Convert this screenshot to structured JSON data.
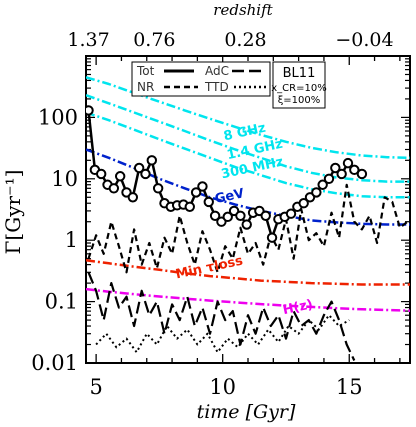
{
  "chart_data": {
    "type": "line",
    "title": "",
    "xlabel": "time [Gyr]",
    "ylabel": "Γ[Gyr⁻¹]",
    "top_axis_label": "redshift",
    "xlim": [
      4.6,
      17.4
    ],
    "ylim": [
      0.01,
      1000
    ],
    "yscale": "log",
    "grid": false,
    "x_ticks": [
      5,
      10,
      15
    ],
    "x_tick_labels": [
      "5",
      "10",
      "15"
    ],
    "y_ticks": [
      0.01,
      0.1,
      1,
      10,
      100
    ],
    "y_tick_labels": [
      "0.01",
      "0.1",
      "1",
      "10",
      "100"
    ],
    "top_ticks": [
      {
        "x": 4.7,
        "label": "1.37"
      },
      {
        "x": 7.3,
        "label": "0.76"
      },
      {
        "x": 10.9,
        "label": "0.28"
      },
      {
        "x": 15.6,
        "label": "−0.04"
      }
    ],
    "legend": {
      "placement": "top-center",
      "entries": [
        {
          "label": "Tot",
          "style": "solid"
        },
        {
          "label": "NR",
          "style": "dashed"
        },
        {
          "label": "AdC",
          "style": "long-dashed"
        },
        {
          "label": "TTD",
          "style": "dotted"
        }
      ]
    },
    "info_box": {
      "title": "BL11",
      "line1": "x_CR=10%",
      "line2": "ξ=100%"
    },
    "series": [
      {
        "name": "Tot",
        "color": "#000000",
        "style": "solid-markers",
        "x": [
          4.7,
          4.95,
          5.2,
          5.45,
          5.7,
          5.95,
          6.2,
          6.45,
          6.7,
          6.95,
          7.2,
          7.45,
          7.7,
          7.95,
          8.2,
          8.45,
          8.7,
          8.95,
          9.2,
          9.45,
          9.7,
          9.95,
          10.2,
          10.45,
          10.7,
          10.95,
          11.2,
          11.45,
          11.7,
          11.95,
          12.2,
          12.45,
          12.7,
          12.95,
          13.2,
          13.45,
          13.7,
          13.95,
          14.2,
          14.45,
          14.7,
          14.95,
          15.2,
          15.5
        ],
        "y": [
          130,
          14,
          12,
          8,
          7,
          11,
          6,
          5,
          15,
          12,
          20,
          7,
          4,
          3.5,
          3.7,
          3.8,
          3.5,
          6,
          7.5,
          4.2,
          2.5,
          2,
          2.4,
          3,
          2.5,
          1.8,
          2.8,
          3,
          2.5,
          1.1,
          2.2,
          2.4,
          2.7,
          3.5,
          4,
          5,
          6,
          8,
          10,
          15,
          12,
          18,
          14,
          12
        ]
      },
      {
        "name": "NR",
        "color": "#000000",
        "style": "dashed",
        "x": [
          4.7,
          5.0,
          5.3,
          5.6,
          5.9,
          6.2,
          6.5,
          6.8,
          7.1,
          7.4,
          7.7,
          8.0,
          8.3,
          8.6,
          8.9,
          9.2,
          9.5,
          9.8,
          10.1,
          10.4,
          10.7,
          11.0,
          11.3,
          11.6,
          11.9,
          12.2,
          12.5,
          12.8,
          13.1,
          13.4,
          13.7,
          14.0,
          14.3,
          14.6,
          14.9,
          15.2,
          15.5,
          15.8,
          16.1,
          16.4,
          16.7,
          17.0,
          17.3
        ],
        "y": [
          0.5,
          1.2,
          0.6,
          2.0,
          0.8,
          0.3,
          1.5,
          0.4,
          0.9,
          0.35,
          1.1,
          0.6,
          2.5,
          0.9,
          0.4,
          1.4,
          0.7,
          0.3,
          0.8,
          0.5,
          1.6,
          0.6,
          0.9,
          0.4,
          1.2,
          0.7,
          2.2,
          0.5,
          3.2,
          1.0,
          1.3,
          0.8,
          2.8,
          1.1,
          8.0,
          2.0,
          1.5,
          2.5,
          0.9,
          5.0,
          4.2,
          1.6,
          2.0
        ]
      },
      {
        "name": "AdC",
        "color": "#000000",
        "style": "long-dashed",
        "x": [
          4.7,
          5.0,
          5.3,
          5.6,
          5.9,
          6.2,
          6.5,
          6.8,
          7.1,
          7.4,
          7.7,
          8.0,
          8.3,
          8.6,
          8.9,
          9.2,
          9.5,
          9.8,
          10.1,
          10.4,
          10.7,
          11.0,
          11.3,
          11.6,
          11.9,
          12.2,
          12.5,
          12.8,
          13.1,
          13.4,
          13.7,
          14.0,
          14.3,
          14.6,
          14.9,
          15.2
        ],
        "y": [
          0.3,
          0.15,
          0.05,
          0.2,
          0.08,
          0.12,
          0.04,
          0.15,
          0.06,
          0.1,
          0.03,
          0.09,
          0.05,
          0.12,
          0.04,
          0.08,
          0.03,
          0.1,
          0.05,
          0.07,
          0.02,
          0.06,
          0.03,
          0.08,
          0.04,
          0.06,
          0.025,
          0.07,
          0.04,
          0.05,
          0.03,
          0.06,
          0.1,
          0.05,
          0.02,
          0.011
        ]
      },
      {
        "name": "TTD",
        "color": "#000000",
        "style": "dotted",
        "x": [
          5.0,
          5.4,
          5.8,
          6.2,
          6.6,
          7.0,
          7.4,
          7.8,
          8.2,
          8.6,
          9.0,
          9.4,
          9.8,
          10.2,
          10.6,
          11.0,
          11.4,
          11.8,
          12.2,
          12.6,
          13.0,
          13.4,
          13.8,
          14.2,
          14.6,
          15.0
        ],
        "y": [
          0.02,
          0.03,
          0.018,
          0.025,
          0.015,
          0.03,
          0.02,
          0.04,
          0.025,
          0.035,
          0.02,
          0.03,
          0.015,
          0.025,
          0.018,
          0.03,
          0.02,
          0.035,
          0.022,
          0.04,
          0.03,
          0.05,
          0.035,
          0.06,
          0.04,
          0.05
        ]
      },
      {
        "name": "8 GHz",
        "color": "#00e5ee",
        "style": "dashdot",
        "x": [
          4.6,
          5.5,
          6.5,
          7.5,
          8.5,
          9.5,
          10.5,
          11.5,
          12.5,
          13.5,
          14.5,
          15.5,
          16.5,
          17.4
        ],
        "y": [
          450,
          350,
          250,
          180,
          130,
          95,
          70,
          52,
          40,
          32,
          27,
          24,
          22.5,
          22
        ]
      },
      {
        "name": "1.4 GHz",
        "color": "#00e5ee",
        "style": "dashdot",
        "x": [
          4.6,
          5.5,
          6.5,
          7.5,
          8.5,
          9.5,
          10.5,
          11.5,
          12.5,
          13.5,
          14.5,
          15.5,
          16.5,
          17.4
        ],
        "y": [
          230,
          170,
          120,
          85,
          60,
          42,
          30,
          22,
          16,
          12.5,
          10.5,
          9.5,
          9.0,
          9.0
        ]
      },
      {
        "name": "300 MHz",
        "color": "#00e5ee",
        "style": "dashdot",
        "x": [
          4.6,
          5.5,
          6.5,
          7.5,
          8.5,
          9.5,
          10.5,
          11.5,
          12.5,
          13.5,
          14.5,
          15.5,
          16.5,
          17.4
        ],
        "y": [
          120,
          90,
          63,
          44,
          31,
          22,
          15.5,
          11.5,
          8.5,
          6.8,
          5.8,
          5.2,
          5.0,
          5.0
        ]
      },
      {
        "name": "GeV",
        "color": "#0022cc",
        "style": "dashdot",
        "x": [
          4.6,
          5.5,
          6.5,
          7.5,
          8.5,
          9.5,
          10.5,
          11.5,
          12.5,
          13.5,
          14.5,
          15.5,
          16.5,
          17.4
        ],
        "y": [
          30,
          22,
          15,
          10,
          7.0,
          5.0,
          3.8,
          3.0,
          2.5,
          2.1,
          1.95,
          1.85,
          1.8,
          1.8
        ]
      },
      {
        "name": "Min τloss",
        "color": "#ee2200",
        "style": "dashdot",
        "x": [
          4.6,
          5.5,
          6.5,
          7.5,
          8.5,
          9.5,
          10.5,
          11.5,
          12.5,
          13.5,
          14.5,
          15.5,
          16.5,
          17.4
        ],
        "y": [
          0.47,
          0.42,
          0.37,
          0.33,
          0.29,
          0.26,
          0.24,
          0.22,
          0.21,
          0.2,
          0.195,
          0.19,
          0.19,
          0.19
        ]
      },
      {
        "name": "H(z)",
        "color": "#ee00ee",
        "style": "dashdot",
        "x": [
          4.6,
          5.5,
          6.5,
          7.5,
          8.5,
          9.5,
          10.5,
          11.5,
          12.5,
          13.5,
          14.5,
          15.5,
          16.5,
          17.4
        ],
        "y": [
          0.16,
          0.145,
          0.132,
          0.121,
          0.112,
          0.104,
          0.097,
          0.091,
          0.086,
          0.082,
          0.078,
          0.075,
          0.073,
          0.071
        ]
      }
    ],
    "annotations": [
      {
        "text": "8 GHz",
        "color": "#00e5ee",
        "x": 10.9,
        "y": 50
      },
      {
        "text": "1.4 GHz",
        "color": "#00e5ee",
        "x": 11.3,
        "y": 26
      },
      {
        "text": "300 MHz",
        "color": "#00e5ee",
        "x": 11.2,
        "y": 13
      },
      {
        "text": "GeV",
        "color": "#0022cc",
        "x": 10.3,
        "y": 4.5
      },
      {
        "text": "Min τloss",
        "color": "#ee2200",
        "x": 9.5,
        "y": 0.31
      },
      {
        "text": "H(z)",
        "color": "#ee00ee",
        "x": 13.0,
        "y": 0.07
      }
    ]
  }
}
